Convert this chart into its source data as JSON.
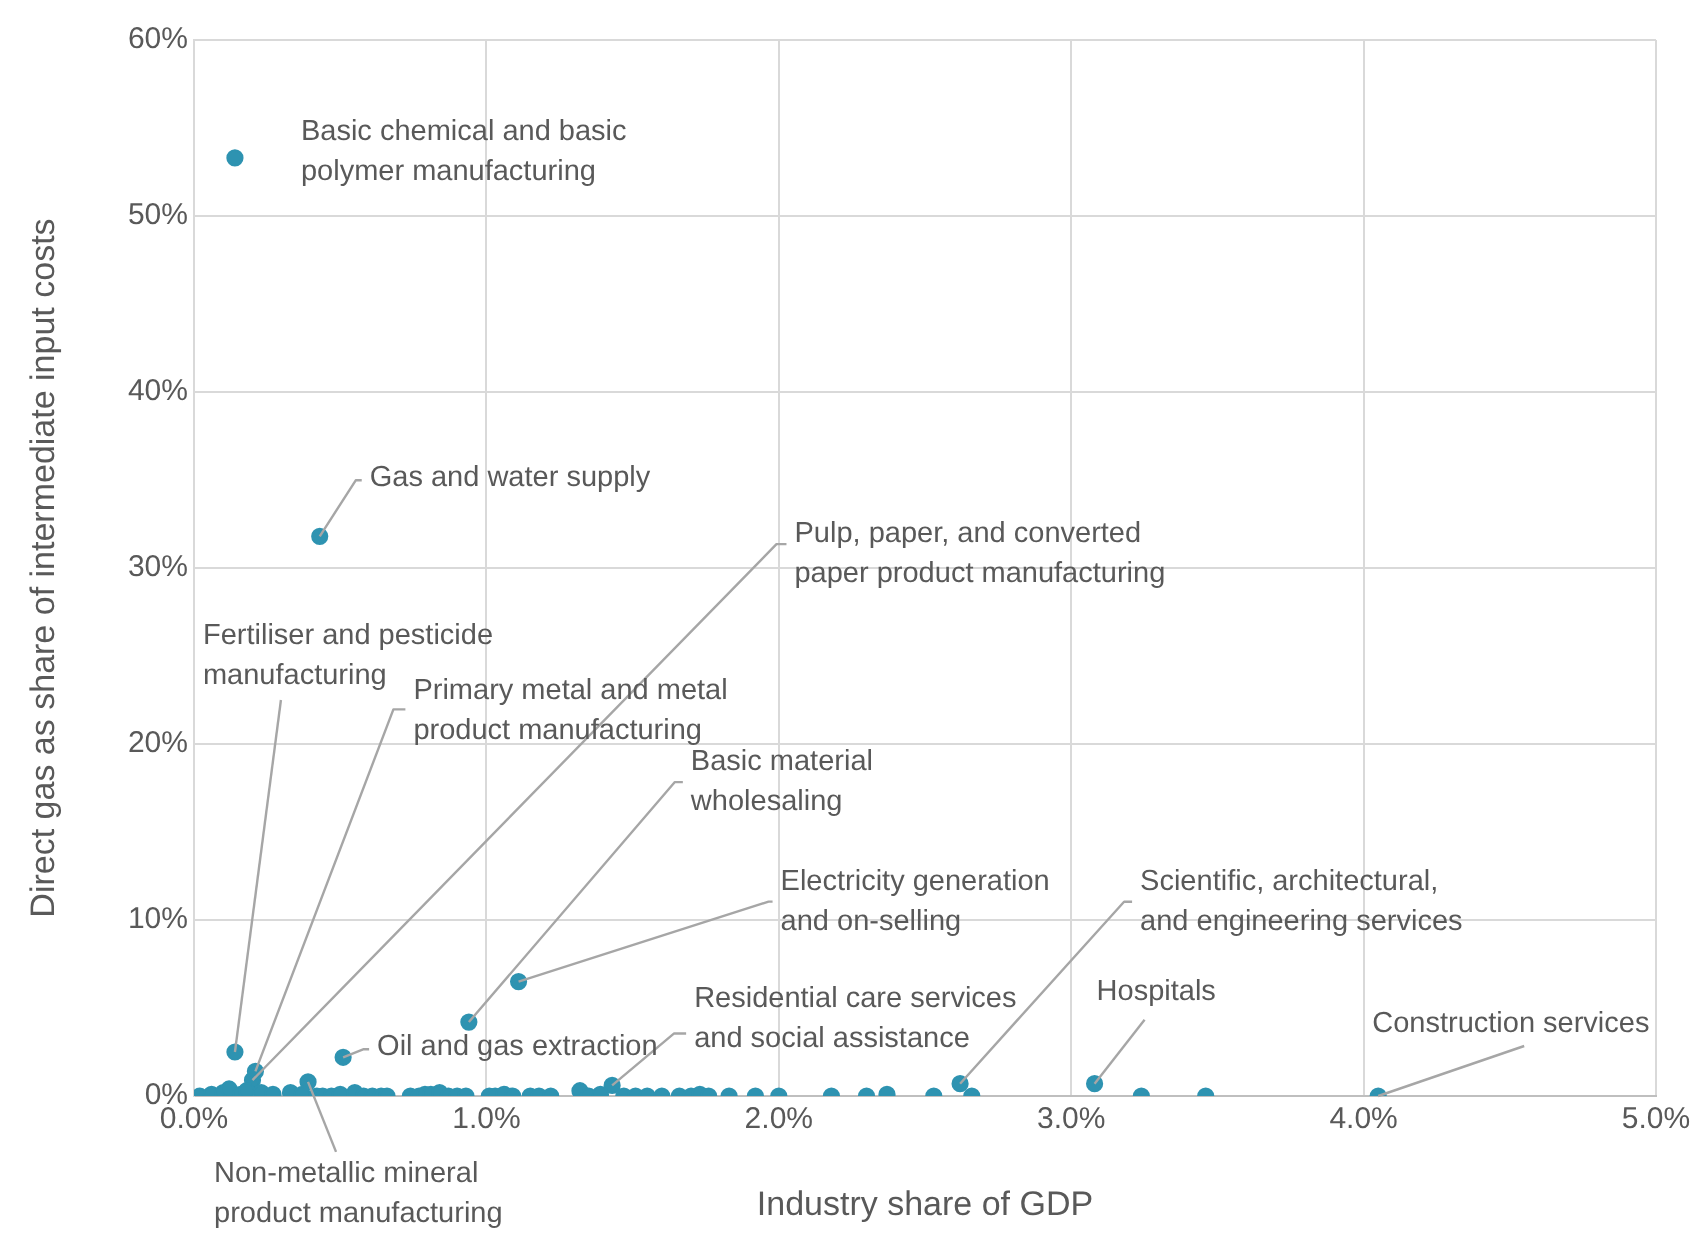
{
  "chart_data": {
    "type": "scatter",
    "xlabel": "Industry share of GDP",
    "ylabel": "Direct gas as share of intermediate input costs",
    "xlim": [
      0,
      5
    ],
    "ylim": [
      0,
      60
    ],
    "xticks": [
      {
        "value": 0,
        "label": "0.0%"
      },
      {
        "value": 1,
        "label": "1.0%"
      },
      {
        "value": 2,
        "label": "2.0%"
      },
      {
        "value": 3,
        "label": "3.0%"
      },
      {
        "value": 4,
        "label": "4.0%"
      },
      {
        "value": 5,
        "label": "5.0%"
      }
    ],
    "yticks": [
      {
        "value": 0,
        "label": "0%"
      },
      {
        "value": 10,
        "label": "10%"
      },
      {
        "value": 20,
        "label": "20%"
      },
      {
        "value": 30,
        "label": "30%"
      },
      {
        "value": 40,
        "label": "40%"
      },
      {
        "value": 50,
        "label": "50%"
      },
      {
        "value": 60,
        "label": "60%"
      }
    ],
    "grid": true,
    "legend": false,
    "marker": "circle",
    "series": [
      {
        "color": "#2e93b1",
        "x": [
          0.14,
          0.43,
          0.2,
          0.14,
          0.21,
          0.94,
          1.11,
          1.43,
          0.51,
          0.39,
          2.62,
          3.08,
          4.05,
          0.02,
          0.06,
          0.1,
          0.12,
          0.16,
          0.18,
          0.23,
          0.27,
          0.33,
          0.37,
          0.42,
          0.44,
          0.47,
          0.5,
          0.55,
          0.58,
          0.61,
          0.64,
          0.66,
          0.74,
          0.77,
          0.79,
          0.81,
          0.84,
          0.87,
          0.9,
          0.93,
          1.01,
          1.03,
          1.06,
          1.09,
          1.15,
          1.18,
          1.22,
          1.32,
          1.35,
          1.39,
          1.47,
          1.51,
          1.55,
          1.6,
          1.66,
          1.7,
          1.73,
          1.76,
          1.83,
          1.92,
          2.0,
          2.18,
          2.3,
          2.37,
          2.53,
          2.66,
          3.24,
          3.46
        ],
        "values": [
          53.3,
          31.8,
          0.9,
          2.5,
          1.4,
          4.2,
          6.5,
          0.6,
          2.2,
          0.8,
          0.7,
          0.7,
          0,
          0,
          0.1,
          0.2,
          0.4,
          0.1,
          0.3,
          0.2,
          0.1,
          0.2,
          0.1,
          0,
          0,
          0,
          0.1,
          0.2,
          0,
          0,
          0,
          0,
          0,
          0,
          0.1,
          0.1,
          0.2,
          0,
          0,
          0,
          0,
          0,
          0.1,
          0,
          0,
          0,
          0,
          0.3,
          0,
          0.1,
          0,
          0,
          0,
          0,
          0,
          0,
          0.1,
          0,
          0,
          0,
          0,
          0,
          0,
          0.1,
          0,
          0,
          0,
          0
        ]
      }
    ],
    "annotations": [
      {
        "text": "Basic chemical and basic\npolymer manufacturing",
        "x": 0.14,
        "y": 53.3
      },
      {
        "text": "Gas and water supply",
        "x": 0.43,
        "y": 31.8
      },
      {
        "text": "Pulp, paper, and converted\npaper product manufacturing",
        "x": 0.2,
        "y": 0.9
      },
      {
        "text": "Fertiliser and pesticide\nmanufacturing",
        "x": 0.14,
        "y": 2.5
      },
      {
        "text": "Primary metal and metal\nproduct manufacturing",
        "x": 0.21,
        "y": 1.4
      },
      {
        "text": "Basic material\nwholesaling",
        "x": 0.94,
        "y": 4.2
      },
      {
        "text": "Electricity generation\nand on-selling",
        "x": 1.11,
        "y": 6.5
      },
      {
        "text": "Residential care services\nand social assistance",
        "x": 1.43,
        "y": 0.6
      },
      {
        "text": "Oil and gas extraction",
        "x": 0.51,
        "y": 2.2
      },
      {
        "text": "Non-metallic mineral\nproduct manufacturing",
        "x": 0.39,
        "y": 0.8
      },
      {
        "text": "Scientific, architectural,\nand engineering services",
        "x": 2.62,
        "y": 0.7
      },
      {
        "text": "Hospitals",
        "x": 3.08,
        "y": 0.7
      },
      {
        "text": "Construction services",
        "x": 4.05,
        "y": 0
      }
    ]
  }
}
